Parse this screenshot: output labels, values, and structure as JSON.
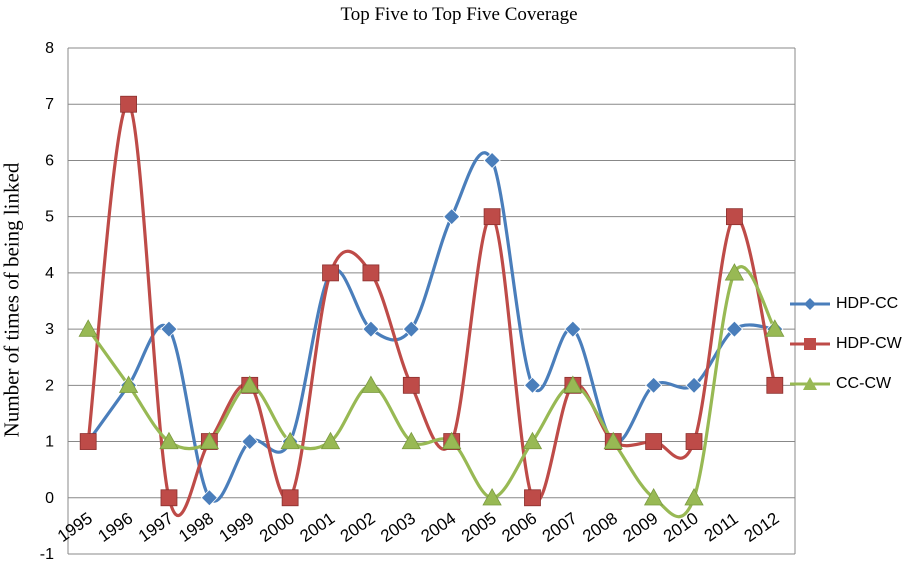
{
  "chart_data": {
    "type": "line",
    "title": "Top Five to Top Five Coverage",
    "xlabel": "",
    "ylabel": "Number of times of being linked",
    "categories": [
      "1995",
      "1996",
      "1997",
      "1998",
      "1999",
      "2000",
      "2001",
      "2002",
      "2003",
      "2004",
      "2005",
      "2006",
      "2007",
      "2008",
      "2009",
      "2010",
      "2011",
      "2012"
    ],
    "ylim": [
      -1,
      8
    ],
    "yticks": [
      "-1",
      "0",
      "1",
      "2",
      "3",
      "4",
      "5",
      "6",
      "7",
      "8"
    ],
    "grid": true,
    "legend_position": "right",
    "series": [
      {
        "name": "HDP-CC",
        "color": "#4a7ebb",
        "marker": "diamond",
        "values": [
          1,
          2,
          3,
          0,
          1,
          1,
          4,
          3,
          3,
          5,
          6,
          2,
          3,
          1,
          2,
          2,
          3,
          3
        ]
      },
      {
        "name": "HDP-CW",
        "color": "#be4b48",
        "marker": "square",
        "values": [
          1,
          7,
          0,
          1,
          2,
          0,
          4,
          4,
          2,
          1,
          5,
          0,
          2,
          1,
          1,
          1,
          5,
          2
        ]
      },
      {
        "name": "CC-CW",
        "color": "#98b954",
        "marker": "triangle",
        "values": [
          3,
          2,
          1,
          1,
          2,
          1,
          1,
          2,
          1,
          1,
          0,
          1,
          2,
          1,
          0,
          0,
          4,
          3
        ]
      }
    ]
  }
}
